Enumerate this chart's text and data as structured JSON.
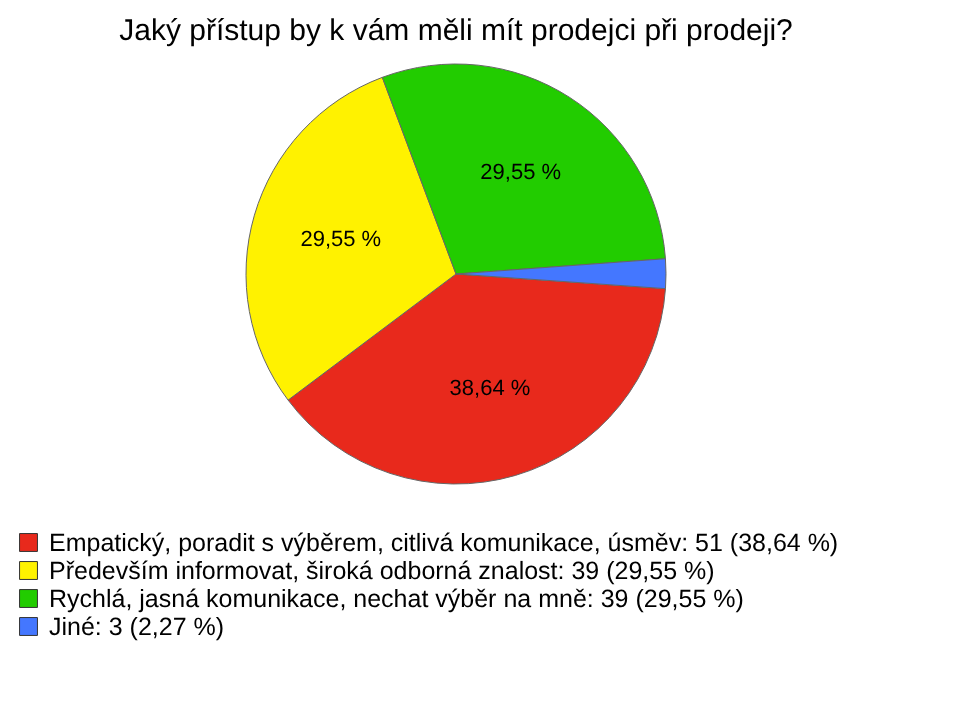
{
  "chart_data": {
    "type": "pie",
    "title": "Jaký přístup by k vám měli mít prodejci při prodeji?",
    "categories": [
      "Empatický, poradit s výběrem, citlivá komunikace, úsměv: 51 (38,64 %)",
      "Především informovat, široká odborná znalost: 39 (29,55 %)",
      "Rychlá, jasná komunikace, nechat výběr na mně: 39 (29,55 %)",
      "Jiné: 3 (2,27 %)"
    ],
    "values": [
      38.64,
      29.55,
      29.55,
      2.27
    ],
    "colors": [
      "#e8291c",
      "#fff200",
      "#22cc00",
      "#4477ff"
    ],
    "value_labels": [
      "38,64 %",
      "29,55 %",
      "29,55 %",
      null
    ],
    "legend": "bottom left"
  }
}
